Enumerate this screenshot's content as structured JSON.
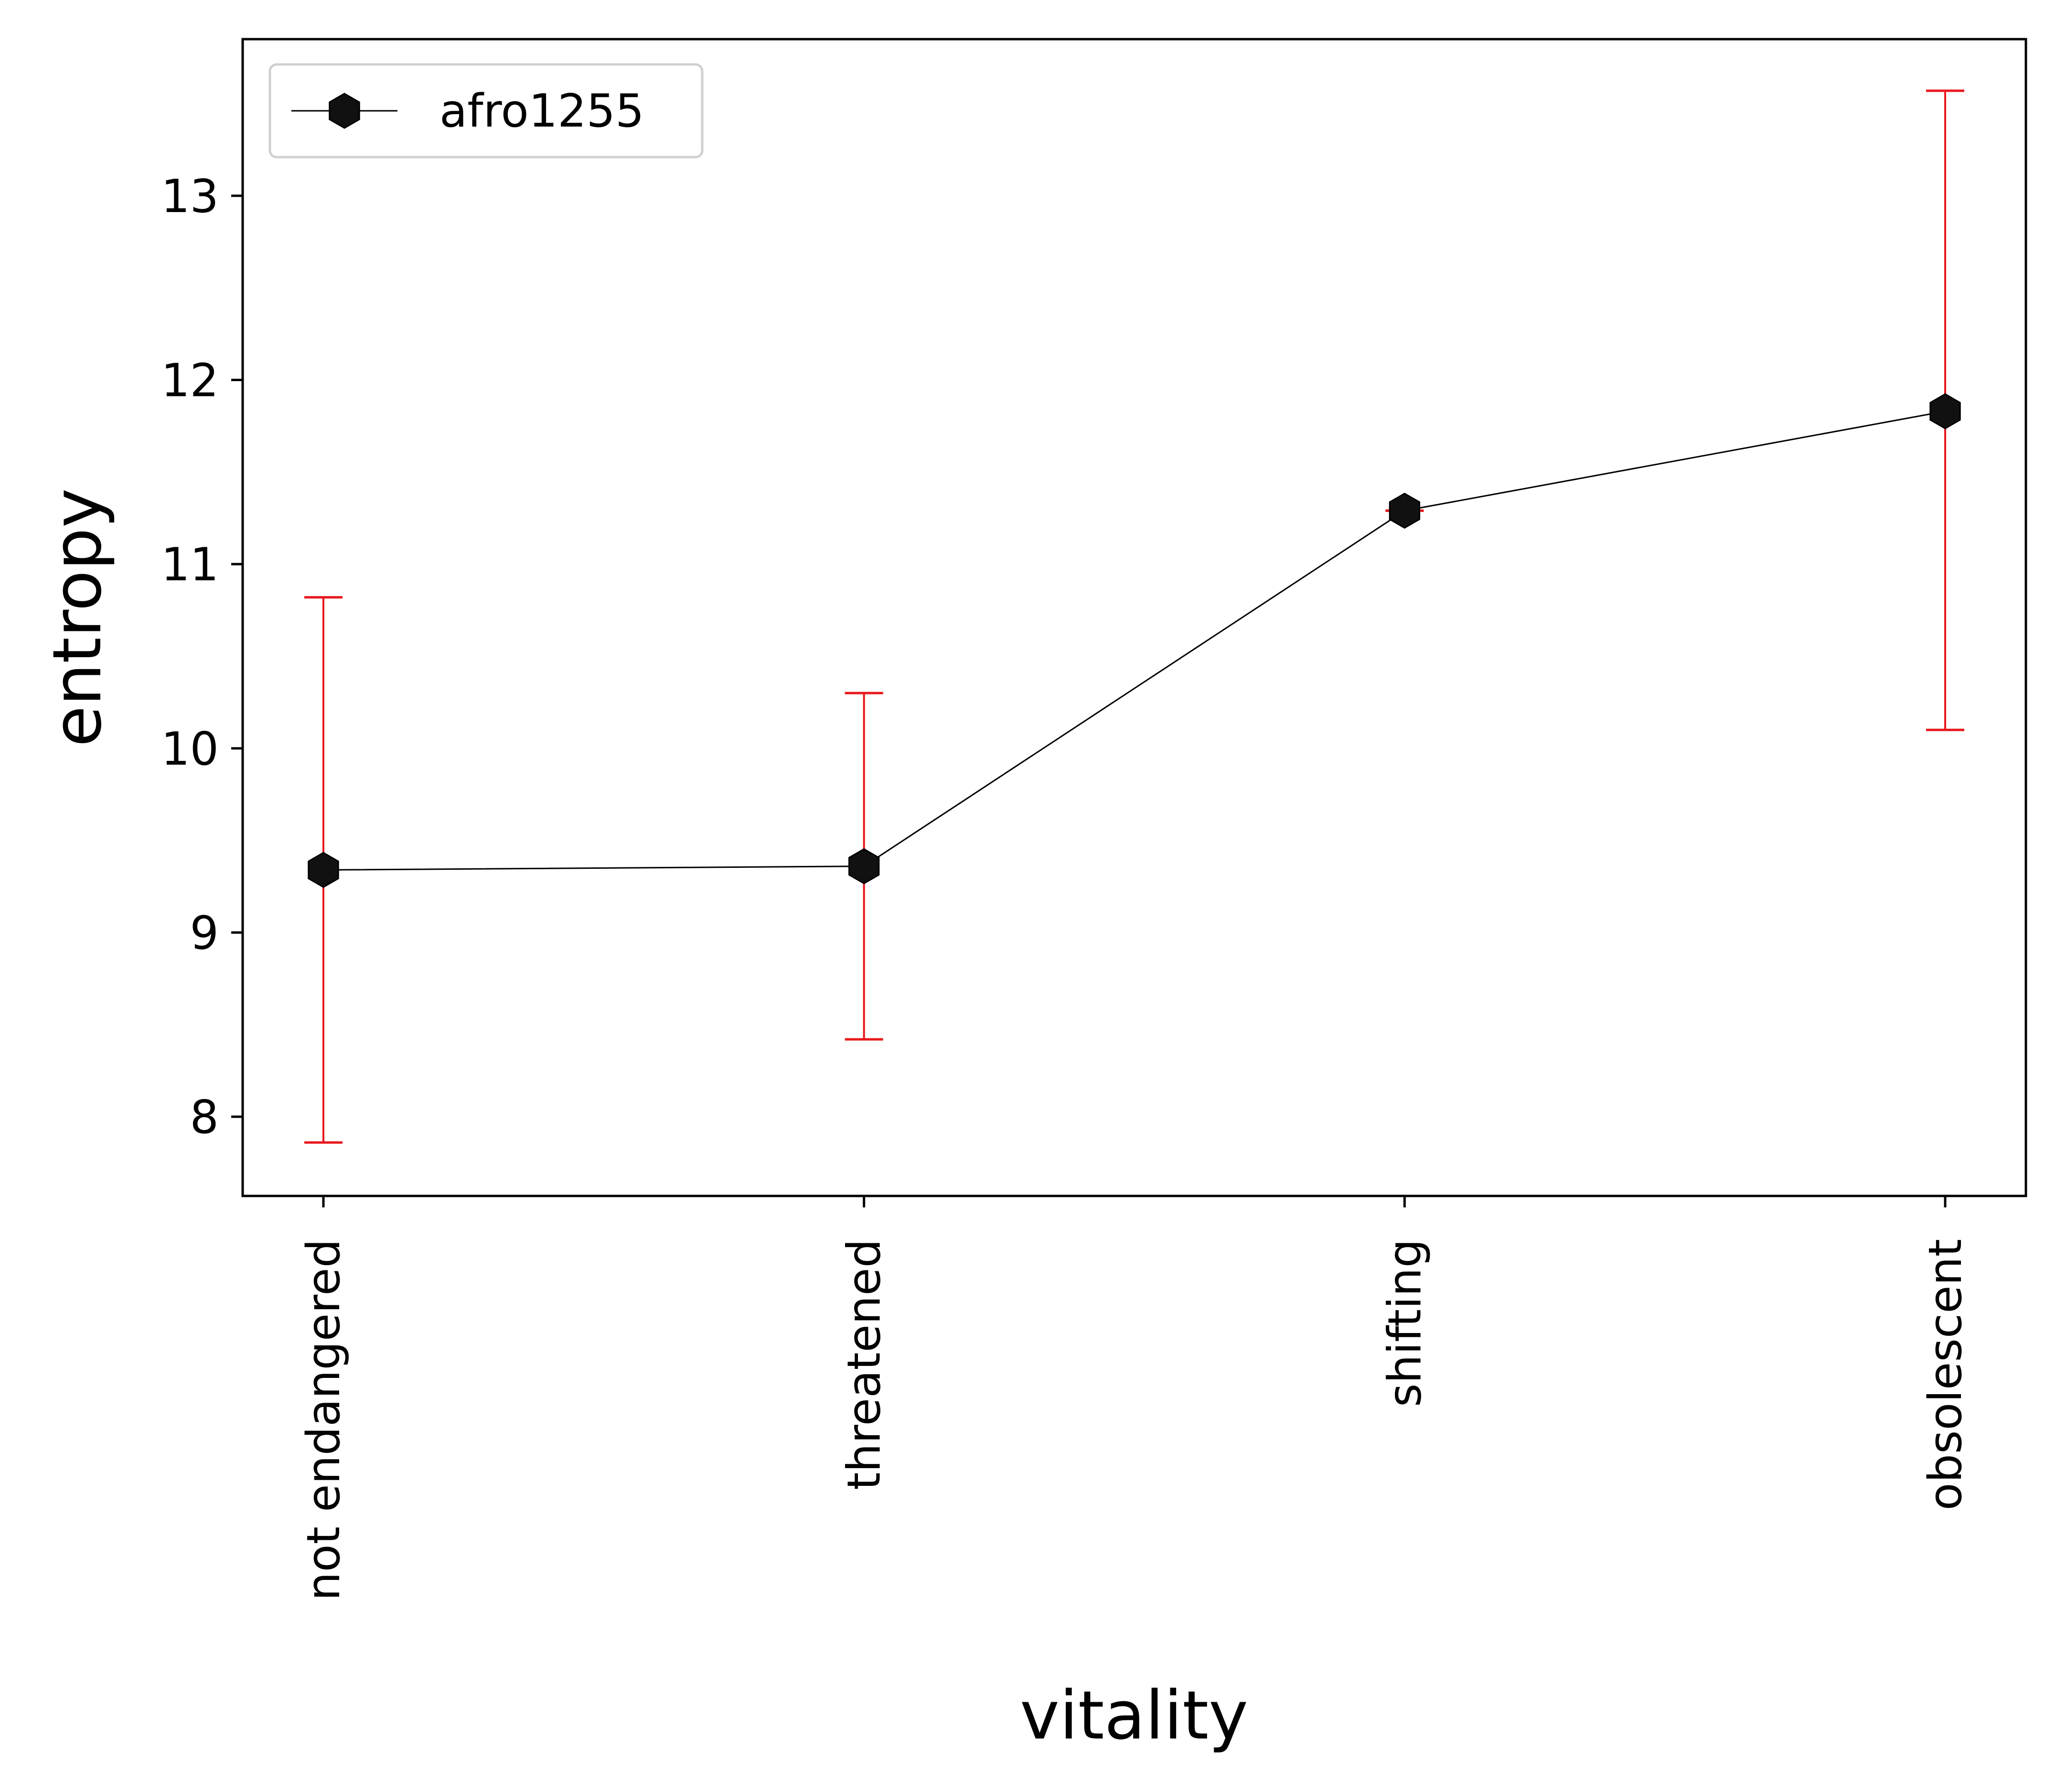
{
  "chart_data": {
    "type": "line",
    "xlabel": "vitality",
    "ylabel": "entropy",
    "categories": [
      "not endangered",
      "threatened",
      "shifting",
      "obsolescent"
    ],
    "ylim": [
      7.57,
      13.85
    ],
    "yticks": [
      8,
      9,
      10,
      11,
      12,
      13
    ],
    "grid": false,
    "legend_position": "upper-left",
    "series": [
      {
        "name": "afro1255",
        "values": [
          9.34,
          9.36,
          11.29,
          11.83
        ],
        "error_low": [
          7.86,
          8.42,
          11.29,
          10.1
        ],
        "error_high": [
          10.82,
          10.3,
          11.29,
          13.57
        ],
        "line_color": "#000000",
        "marker": "hexagon",
        "marker_color": "#111111",
        "error_color": "#e8161b"
      }
    ]
  }
}
